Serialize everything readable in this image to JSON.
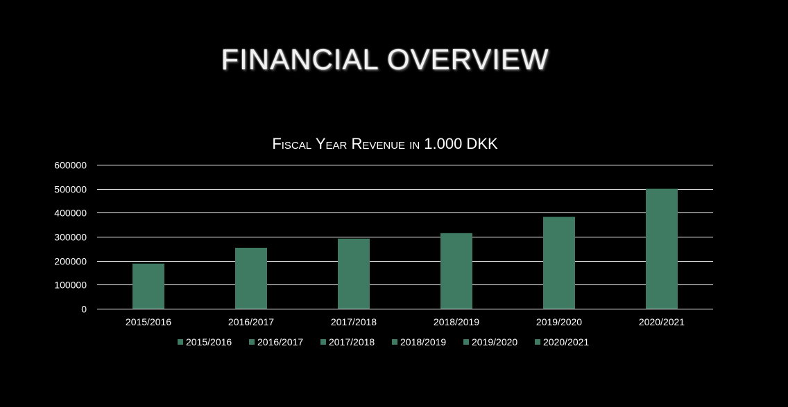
{
  "slide": {
    "title": "FINANCIAL OVERVIEW"
  },
  "chart_data": {
    "type": "bar",
    "title": "Fiscal Year Revenue in 1.000 DKK",
    "xlabel": "",
    "ylabel": "",
    "categories": [
      "2015/2016",
      "2016/2017",
      "2017/2018",
      "2018/2019",
      "2019/2020",
      "2020/2021"
    ],
    "values": [
      188000,
      254000,
      292000,
      315000,
      383000,
      500000
    ],
    "ylim": [
      0,
      600000
    ],
    "yticks": [
      "0",
      "100000",
      "200000",
      "300000",
      "400000",
      "500000",
      "600000"
    ],
    "legend": [
      "2015/2016",
      "2016/2017",
      "2017/2018",
      "2018/2019",
      "2019/2020",
      "2020/2021"
    ],
    "legend_position": "bottom",
    "grid": true,
    "colors": {
      "bar": "#3f7a62",
      "grid": "#ffffff",
      "text": "#ffffff",
      "background": "#000000"
    }
  }
}
